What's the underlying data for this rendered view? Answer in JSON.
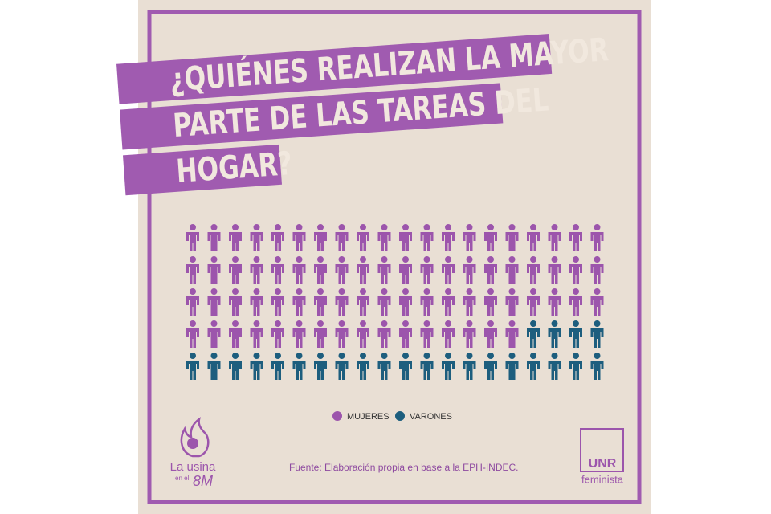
{
  "chart_data": {
    "type": "pictogram",
    "title": [
      "¿QUIÉNES REALIZAN LA MAYOR",
      "PARTE DE LAS TAREAS DEL",
      "HOGAR?"
    ],
    "series": [
      {
        "name": "MUJERES",
        "color": "#9c55ac",
        "value": 76
      },
      {
        "name": "VARONES",
        "color": "#1d5e7e",
        "value": 24
      }
    ],
    "source": "Fuente: Elaboración propia en base a la EPH-INDEC."
  },
  "logos": {
    "usina": [
      "La usina",
      "en el",
      "8M"
    ],
    "unr": [
      "UNR",
      "feminista"
    ]
  }
}
